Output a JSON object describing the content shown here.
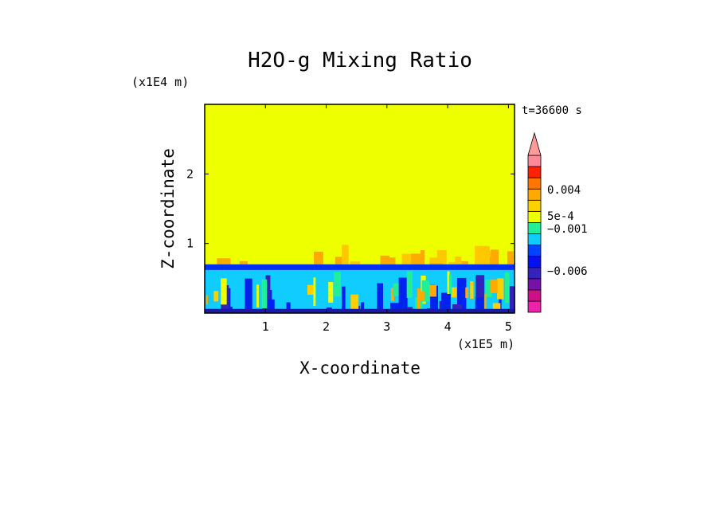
{
  "chart_data": {
    "type": "heatmap",
    "title": "H2O-g Mixing Ratio",
    "xlabel": "X-coordinate",
    "ylabel": "Z-coordinate",
    "x_unit": "(x1E5 m)",
    "y_unit": "(x1E4 m)",
    "time_label": "t=36600 s",
    "xlim": [
      0,
      5.1
    ],
    "ylim": [
      0,
      3.0
    ],
    "x_ticks": [
      "1",
      "2",
      "3",
      "4",
      "5"
    ],
    "y_ticks": [
      "1",
      "2"
    ],
    "field": {
      "background_value": 0.0002,
      "mixed_layer_top": 0.7,
      "plume_top": 1.0,
      "surface_value": -0.001
    },
    "colorbar": {
      "extend": "max",
      "levels": [
        {
          "color": "#ee22aa"
        },
        {
          "color": "#cc1188"
        },
        {
          "color": "#7711aa"
        },
        {
          "color": "#3322bb"
        },
        {
          "color": "#0011ee"
        },
        {
          "color": "#0044ff"
        },
        {
          "color": "#11ccff"
        },
        {
          "color": "#22ee99"
        },
        {
          "color": "#eeff00"
        },
        {
          "color": "#ffd000"
        },
        {
          "color": "#ffaa00"
        },
        {
          "color": "#ff7700"
        },
        {
          "color": "#ff2200"
        },
        {
          "color": "#ff8899"
        }
      ],
      "extend_color": "#ff9a9a",
      "labels": [
        "0.004",
        "5e-4",
        "−0.001",
        "−0.006"
      ]
    }
  }
}
